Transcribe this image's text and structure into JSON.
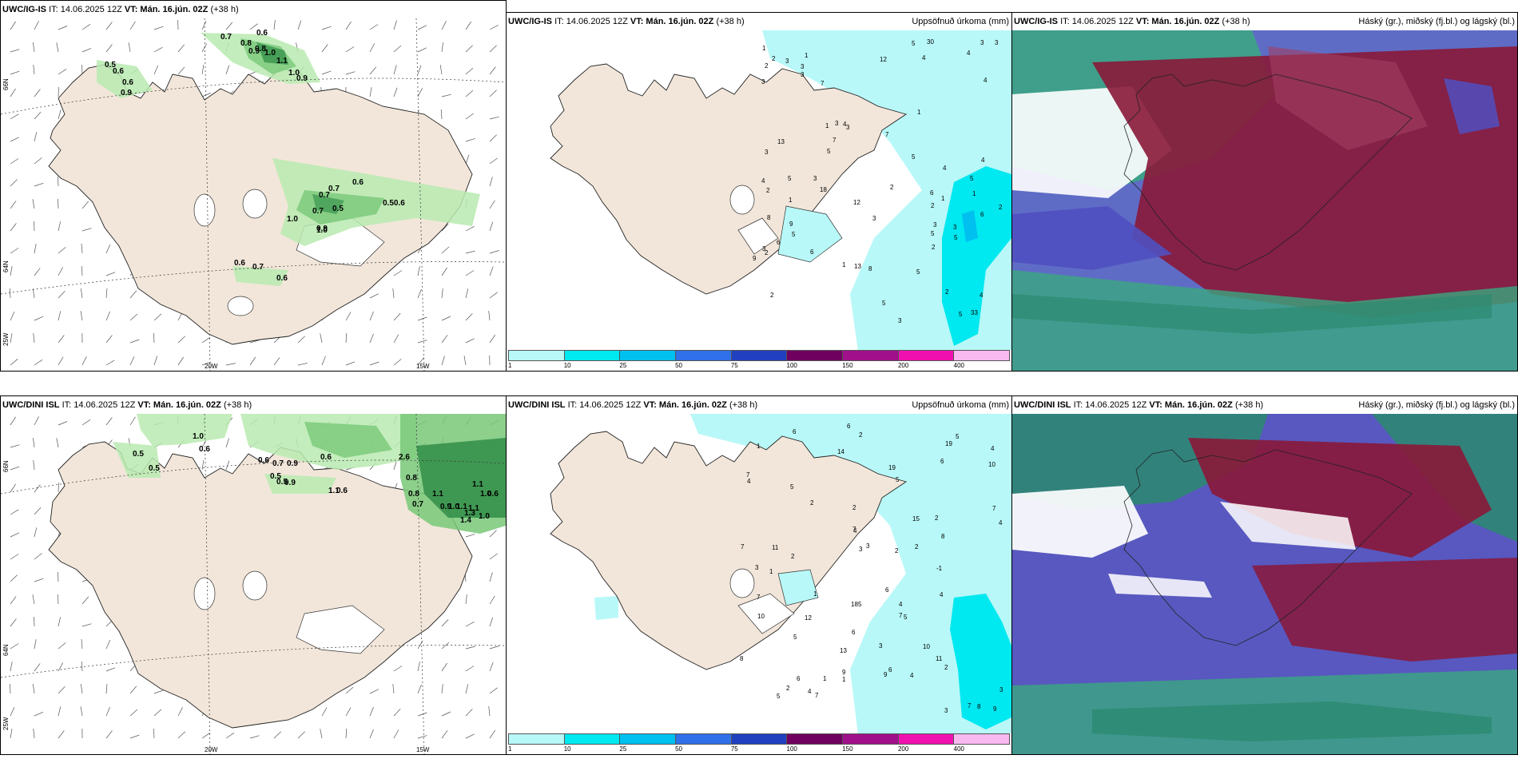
{
  "rows": [
    {
      "model_name": "UWC/IG-IS",
      "it_label": "IT: 14.06.2025 12Z",
      "vt_label": "VT: Mán. 16.jún. 02Z",
      "lead": "(+38 h)",
      "wind_values": [
        {
          "t": "0.7"
        },
        {
          "t": "0.6"
        },
        {
          "t": "0.8"
        },
        {
          "t": "0.9"
        },
        {
          "t": "0.8"
        },
        {
          "t": "1.0"
        },
        {
          "t": "1.1"
        },
        {
          "t": "1.0"
        },
        {
          "t": "0.9"
        },
        {
          "t": "0.5"
        },
        {
          "t": "0.6"
        },
        {
          "t": "0.6"
        },
        {
          "t": "0.9"
        },
        {
          "t": "0.6"
        },
        {
          "t": "0.7"
        },
        {
          "t": "0.7"
        },
        {
          "t": "0.5"
        },
        {
          "t": "0.7"
        },
        {
          "t": "1.0"
        },
        {
          "t": "0.9"
        },
        {
          "t": "1.0"
        },
        {
          "t": "0.50.6"
        },
        {
          "t": "0.6"
        },
        {
          "t": "0.7"
        },
        {
          "t": "0.6"
        }
      ],
      "precip_title": "Uppsöfnuð úrkoma (mm)",
      "precip_values": [
        "2",
        "1",
        "2",
        "1",
        "3",
        "2",
        "2",
        "4",
        "1",
        "3",
        "3",
        "4",
        "2",
        "4",
        "1",
        "4",
        "3",
        "2",
        "4",
        "5",
        "3",
        "4",
        "5",
        "6",
        "5",
        "3",
        "3",
        "2",
        "3",
        "4",
        "5",
        "5",
        "7",
        "18",
        "5",
        "5",
        "5",
        "5",
        "8",
        "6",
        "4",
        "30",
        "33",
        "13",
        "3",
        "6",
        "9",
        "2",
        "5",
        "3",
        "2",
        "3",
        "3",
        "6",
        "2",
        "5",
        "1",
        "1",
        "1",
        "3",
        "1",
        "7",
        "7",
        "8",
        "12",
        "13",
        "12",
        "9",
        "3",
        "3"
      ],
      "cloud_title": "Háský (gr.), miðský (fj.bl.) og lágský (bl.)"
    },
    {
      "model_name": "UWC/DINI ISL",
      "it_label": "IT: 14.06.2025 12Z",
      "vt_label": "VT: Mán. 16.jún. 02Z",
      "lead": "(+38 h)",
      "wind_values": [
        {
          "t": "1.0"
        },
        {
          "t": "0.6"
        },
        {
          "t": "0.5"
        },
        {
          "t": "0.5"
        },
        {
          "t": "0.6"
        },
        {
          "t": "0.7"
        },
        {
          "t": "0.9"
        },
        {
          "t": "0.6"
        },
        {
          "t": "2.6"
        },
        {
          "t": "0.5"
        },
        {
          "t": "0.5"
        },
        {
          "t": "0.9"
        },
        {
          "t": "0.8"
        },
        {
          "t": "1.1"
        },
        {
          "t": "0.6"
        },
        {
          "t": "0.8"
        },
        {
          "t": "0.7"
        },
        {
          "t": "1.1"
        },
        {
          "t": "0.9"
        },
        {
          "t": "1.0"
        },
        {
          "t": "1.1"
        },
        {
          "t": "1.3"
        },
        {
          "t": "1.0"
        },
        {
          "t": "1.1"
        },
        {
          "t": "1.0"
        },
        {
          "t": "0.6"
        },
        {
          "t": "1.4"
        },
        {
          "t": "1.1"
        }
      ],
      "precip_title": "Uppsöfnuð úrkoma (mm)",
      "precip_values": [
        "7",
        "2",
        "2",
        "4",
        "7",
        "7",
        "1",
        "5",
        "2",
        "5",
        "3",
        "4",
        "6",
        "4",
        "5",
        "5",
        "6",
        "3",
        "6",
        "6",
        "10",
        "2",
        "10",
        "4",
        "6",
        "3",
        "4",
        "6",
        "7",
        "9",
        "7",
        "3",
        "2",
        "5",
        "4",
        "10",
        "8",
        "1",
        "1",
        "2",
        "3",
        "2",
        "3",
        "4",
        "5",
        "12",
        "6",
        "8",
        "9",
        "2",
        "15",
        "11",
        "5",
        "-1",
        "4",
        "14",
        "7",
        "7",
        "19",
        "19",
        "18",
        "2",
        "7",
        "9",
        "8",
        "11",
        "13",
        "1",
        "1"
      ],
      "cloud_title": "Háský (gr.), miðský (fj.bl.) og lágský (bl.)"
    }
  ],
  "lon_labels": [
    "25W",
    "20W",
    "15W"
  ],
  "lat_labels": [
    "66N",
    "64N"
  ],
  "scale_ticks": [
    "1",
    "10",
    "25",
    "50",
    "75",
    "100",
    "150",
    "200",
    "400"
  ],
  "scale_colors": [
    "#b8f8f8",
    "#00e8f0",
    "#00c0f0",
    "#3070e8",
    "#2040c0",
    "#700060",
    "#a0108a",
    "#f010b0",
    "#f8b8f0"
  ],
  "colors": {
    "land": "#f2e6da",
    "wind_green_light": "#b8eab0",
    "wind_green_mid": "#78c878",
    "wind_green_dark": "#2c8a44",
    "precip_light": "#b8f8f8",
    "precip_cyan": "#00e8f0",
    "cloud_high_green": "#40b888",
    "cloud_mid_red": "#8a1838",
    "cloud_low_blue": "#6060c8"
  }
}
